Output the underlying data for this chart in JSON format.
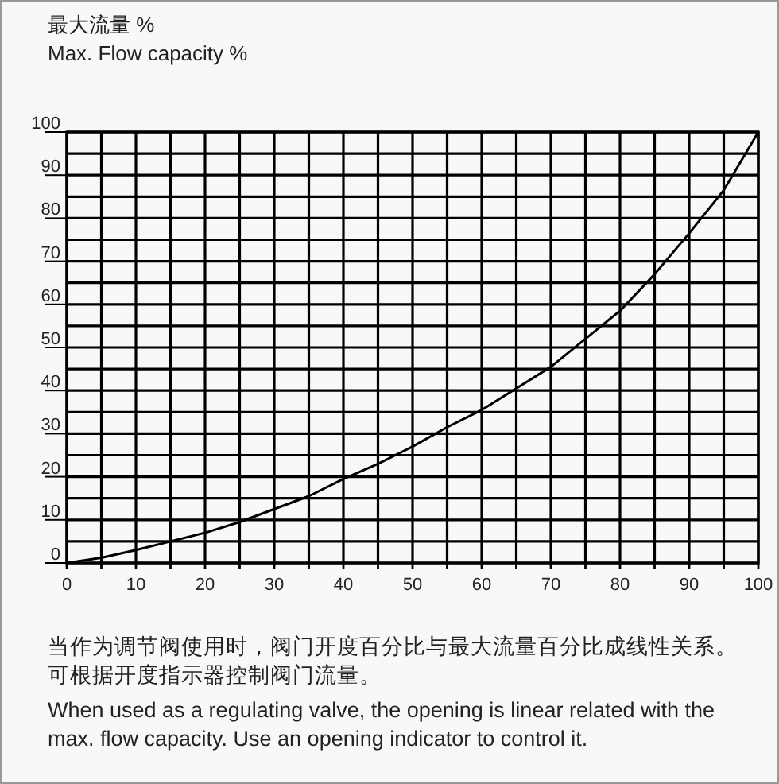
{
  "chart_data": {
    "type": "line",
    "ylabel": "最大流量 %\nMax. Flow capacity %",
    "x": [
      0,
      5,
      10,
      15,
      20,
      25,
      30,
      35,
      40,
      45,
      50,
      55,
      60,
      65,
      70,
      75,
      80,
      85,
      90,
      95,
      100
    ],
    "series": [
      {
        "color": "#000000",
        "values": [
          0,
          1.2,
          3,
          5,
          7,
          9.5,
          12.5,
          15.5,
          19.5,
          23,
          27,
          31.5,
          35.5,
          40.5,
          45.5,
          52,
          58.5,
          67,
          76.5,
          86.5,
          100
        ]
      }
    ],
    "xlim": [
      0,
      100
    ],
    "ylim": [
      0,
      100
    ],
    "xticks": [
      0,
      {
        "value": 5,
        "label": null
      },
      10,
      {
        "value": 15,
        "label": null
      },
      20,
      {
        "value": 25,
        "label": null
      },
      30,
      {
        "value": 35,
        "label": null
      },
      40,
      {
        "value": 45,
        "label": null
      },
      50,
      {
        "value": 55,
        "label": null
      },
      60,
      {
        "value": 65,
        "label": null
      },
      70,
      {
        "value": 75,
        "label": null
      },
      80,
      {
        "value": 85,
        "label": null
      },
      90,
      {
        "value": 95,
        "label": null
      },
      100
    ],
    "yticks": [
      0,
      {
        "value": 5,
        "label": null
      },
      10,
      {
        "value": 15,
        "label": null
      },
      20,
      {
        "value": 25,
        "label": null
      },
      30,
      {
        "value": 35,
        "label": null
      },
      40,
      {
        "value": 45,
        "label": null
      },
      50,
      {
        "value": 55,
        "label": null
      },
      60,
      {
        "value": 65,
        "label": null
      },
      70,
      {
        "value": 75,
        "label": null
      },
      80,
      {
        "value": 85,
        "label": null
      },
      90,
      {
        "value": 95,
        "label": null
      },
      100
    ],
    "grid": true,
    "marker": "none",
    "line_style": "solid",
    "annotations": [
      "当作为调节阀使用时，阀门开度百分比与最大流量百分比成线性关系。可根据开度指示器控制阀门流量。",
      "When used as a regulating valve, the opening is linear related with the max. flow capacity. Use an opening indicator to control it."
    ]
  }
}
